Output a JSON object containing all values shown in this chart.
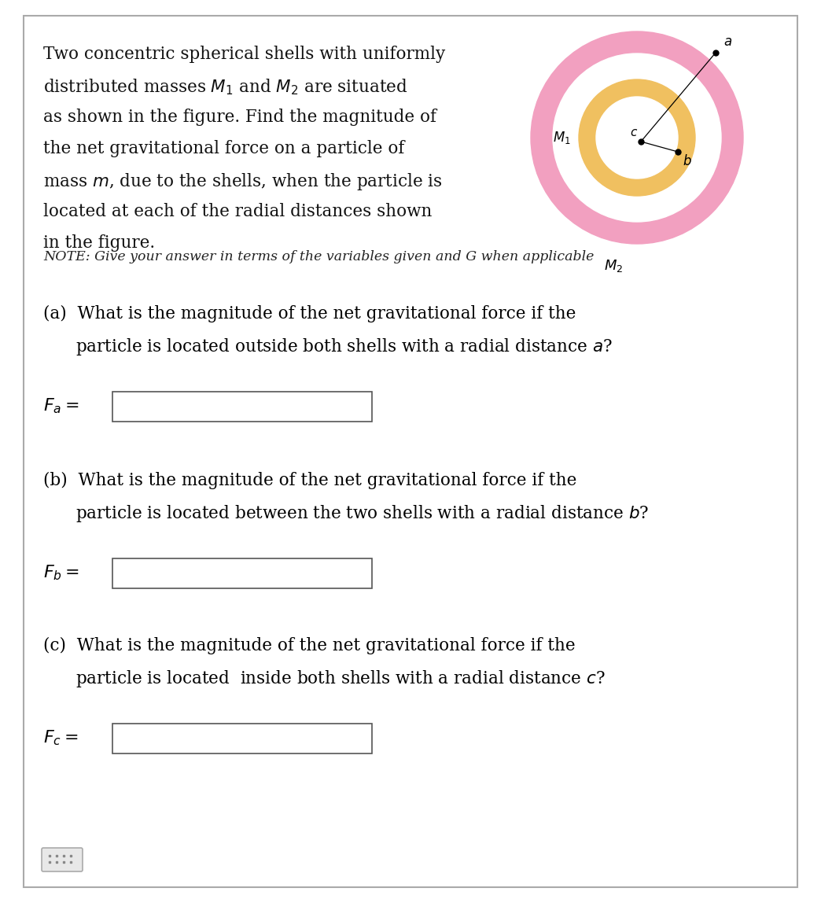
{
  "bg_color": "#ffffff",
  "fig_width": 10.44,
  "fig_height": 11.43,
  "dpi": 100,
  "outer_shell_color": "#f2a0c0",
  "inner_shell_color": "#f0c060",
  "border_color": "#aaaaaa",
  "text_color": "#111111",
  "note_color": "#222222",
  "title_lines": [
    "Two concentric spherical shells with uniformly",
    "distributed masses $M_1$ and $M_2$ are situated",
    "as shown in the figure. Find the magnitude of",
    "the net gravitational force on a particle of",
    "mass $m$, due to the shells, when the particle is",
    "located at each of the radial distances shown",
    "in the figure."
  ],
  "note_line": "NOTE: Give your answer in terms of the variables given and G when applicable",
  "part_a_line1": "(a)  What is the magnitude of the net gravitational force if the",
  "part_a_line2": "      particle is located outside both shells with a radial distance $a$?",
  "part_b_line1": "(b)  What is the magnitude of the net gravitational force if the",
  "part_b_line2": "      particle is located between the two shells with a radial distance $b$?",
  "part_c_line1": "(c)  What is the magnitude of the net gravitational force if the",
  "part_c_line2": "      particle is located  inside both shells with a radial distance $c$?",
  "label_a": "$F_a =$",
  "label_b": "$F_b =$",
  "label_c": "$F_c =$"
}
